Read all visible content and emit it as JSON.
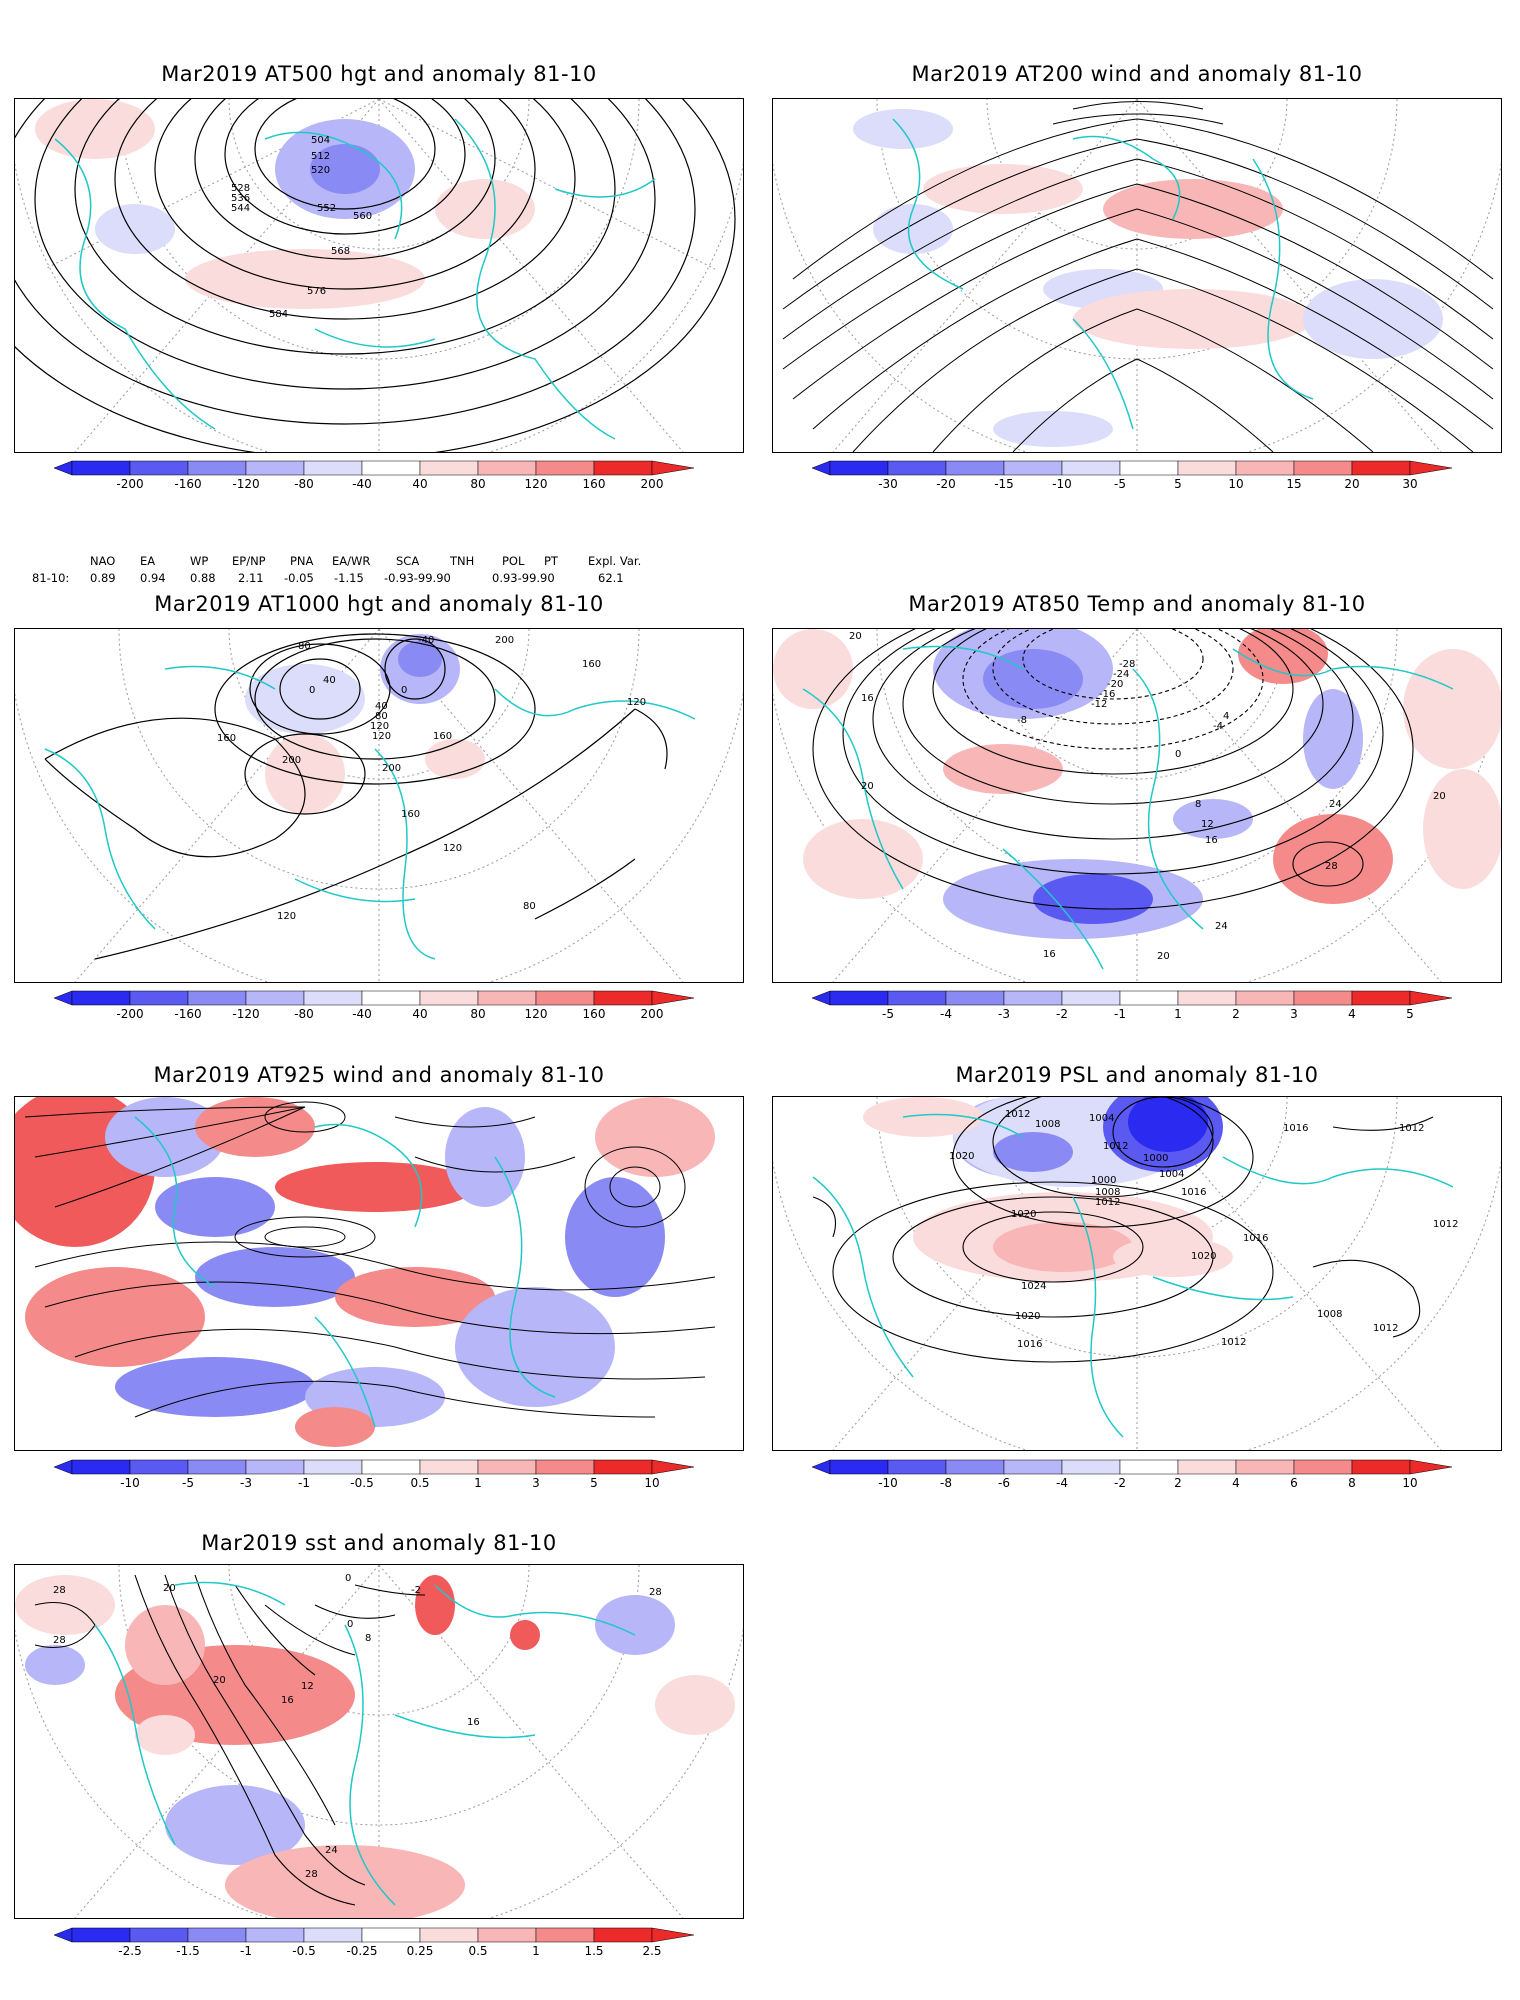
{
  "palette": {
    "blues": [
      "#2a2af0",
      "#5a5af2",
      "#8a8af4",
      "#b6b6f8",
      "#dcdcfb"
    ],
    "reds": [
      "#fbdcdc",
      "#f8b6b6",
      "#f48a8a",
      "#f05a5a",
      "#ec2a2a"
    ],
    "contour": "#000000",
    "coast": "#20c8c8",
    "grid": "#999999"
  },
  "panels": [
    {
      "id": "at500",
      "title": "Mar2019 AT500 hgt and anomaly 81-10",
      "colorbar": [
        "-200",
        "-160",
        "-120",
        "-80",
        "-40",
        "40",
        "80",
        "120",
        "160",
        "200"
      ],
      "contour_labels": [
        "504",
        "512",
        "520",
        "528",
        "536",
        "544",
        "552",
        "560",
        "568",
        "576",
        "584"
      ]
    },
    {
      "id": "at200",
      "title": "Mar2019 AT200 wind and anomaly 81-10",
      "colorbar": [
        "-30",
        "-20",
        "-15",
        "-10",
        "-5",
        "5",
        "10",
        "15",
        "20",
        "30"
      ],
      "contour_labels": []
    },
    {
      "id": "at1000",
      "title": "Mar2019 AT1000 hgt and anomaly 81-10",
      "colorbar": [
        "-200",
        "-160",
        "-120",
        "-80",
        "-40",
        "40",
        "80",
        "120",
        "160",
        "200"
      ],
      "contour_labels": [
        "-40",
        "80",
        "40",
        "0",
        "0",
        "40",
        "80",
        "120",
        "120",
        "160",
        "160",
        "160",
        "200",
        "200",
        "200",
        "120",
        "120",
        "160",
        "80",
        "120"
      ]
    },
    {
      "id": "at850",
      "title": "Mar2019 AT850 Temp and anomaly 81-10",
      "colorbar": [
        "-5",
        "-4",
        "-3",
        "-2",
        "-1",
        "1",
        "2",
        "3",
        "4",
        "5"
      ],
      "contour_labels": [
        "20",
        "16",
        "20",
        "-28",
        "-24",
        "-20",
        "-16",
        "-12",
        "-8",
        "0",
        "-4",
        "4",
        "8",
        "12",
        "16",
        "24",
        "28",
        "20",
        "24",
        "20",
        "16"
      ]
    },
    {
      "id": "at925",
      "title": "Mar2019 AT925 wind and anomaly 81-10",
      "colorbar": [
        "-10",
        "-5",
        "-3",
        "-1",
        "-0.5",
        "0.5",
        "1",
        "3",
        "5",
        "10"
      ],
      "contour_labels": []
    },
    {
      "id": "psl",
      "title": "Mar2019 PSL and anomaly 81-10",
      "colorbar": [
        "-10",
        "-8",
        "-6",
        "-4",
        "-2",
        "2",
        "4",
        "6",
        "8",
        "10"
      ],
      "contour_labels": [
        "1012",
        "1008",
        "1004",
        "1012",
        "1000",
        "1004",
        "1000",
        "1008",
        "1012",
        "1016",
        "1016",
        "1012",
        "1020",
        "1020",
        "1024",
        "1020",
        "1016",
        "1020",
        "1016",
        "1012",
        "1008",
        "1012",
        "1012"
      ]
    },
    {
      "id": "sst",
      "title": "Mar2019 sst and anomaly 81-10",
      "colorbar": [
        "-2.5",
        "-1.5",
        "-1",
        "-0.5",
        "-0.25",
        "0.25",
        "0.5",
        "1",
        "1.5",
        "2.5"
      ],
      "contour_labels": [
        "28",
        "28",
        "20",
        "20",
        "16",
        "12",
        "8",
        "0",
        "0",
        "-2",
        "24",
        "28",
        "16",
        "28"
      ]
    }
  ],
  "indices": {
    "headers": [
      "NAO",
      "EA",
      "WP",
      "EP/NP",
      "PNA",
      "EA/WR",
      "SCA",
      "TNH",
      "POL",
      "PT",
      "Expl. Var."
    ],
    "row_label": "81-10:",
    "values": [
      "0.89",
      "0.94",
      "0.88",
      "2.11",
      "-0.05",
      "-1.15",
      "-0.93-99.90",
      "",
      "0.93-99.90",
      "",
      "62.1"
    ]
  }
}
